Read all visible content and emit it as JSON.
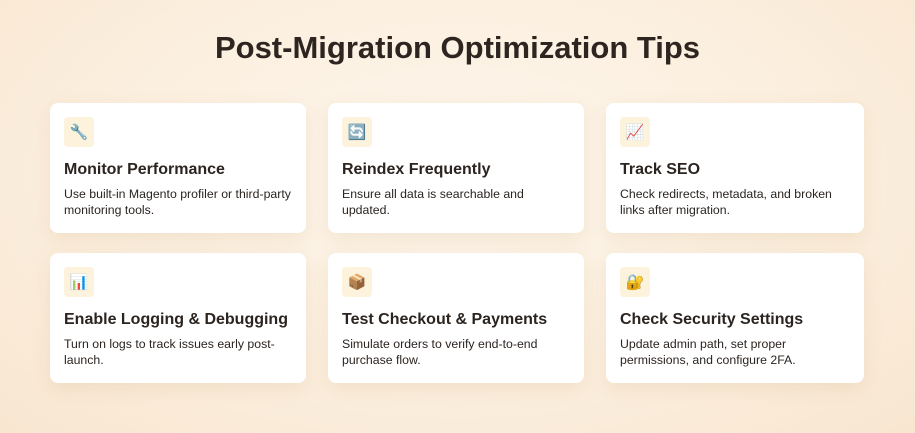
{
  "title": "Post-Migration Optimization Tips",
  "cards": [
    {
      "icon": "🔧",
      "icon_name": "wrench-icon",
      "title": "Monitor Performance",
      "desc": "Use built-in Magento profiler or third-party monitoring tools."
    },
    {
      "icon": "🔄",
      "icon_name": "refresh-icon",
      "title": "Reindex Frequently",
      "desc": "Ensure all data is searchable and updated."
    },
    {
      "icon": "📈",
      "icon_name": "chart-increasing-icon",
      "title": "Track SEO",
      "desc": "Check redirects, metadata, and broken links after migration."
    },
    {
      "icon": "📊",
      "icon_name": "bar-chart-icon",
      "title": "Enable Logging & Debugging",
      "desc": "Turn on logs to track issues early post-launch."
    },
    {
      "icon": "📦",
      "icon_name": "package-icon",
      "title": "Test Checkout & Payments",
      "desc": "Simulate orders to verify end-to-end purchase flow."
    },
    {
      "icon": "🔐",
      "icon_name": "lock-key-icon",
      "title": "Check Security Settings",
      "desc": "Update admin path, set proper permissions, and configure 2FA."
    }
  ]
}
